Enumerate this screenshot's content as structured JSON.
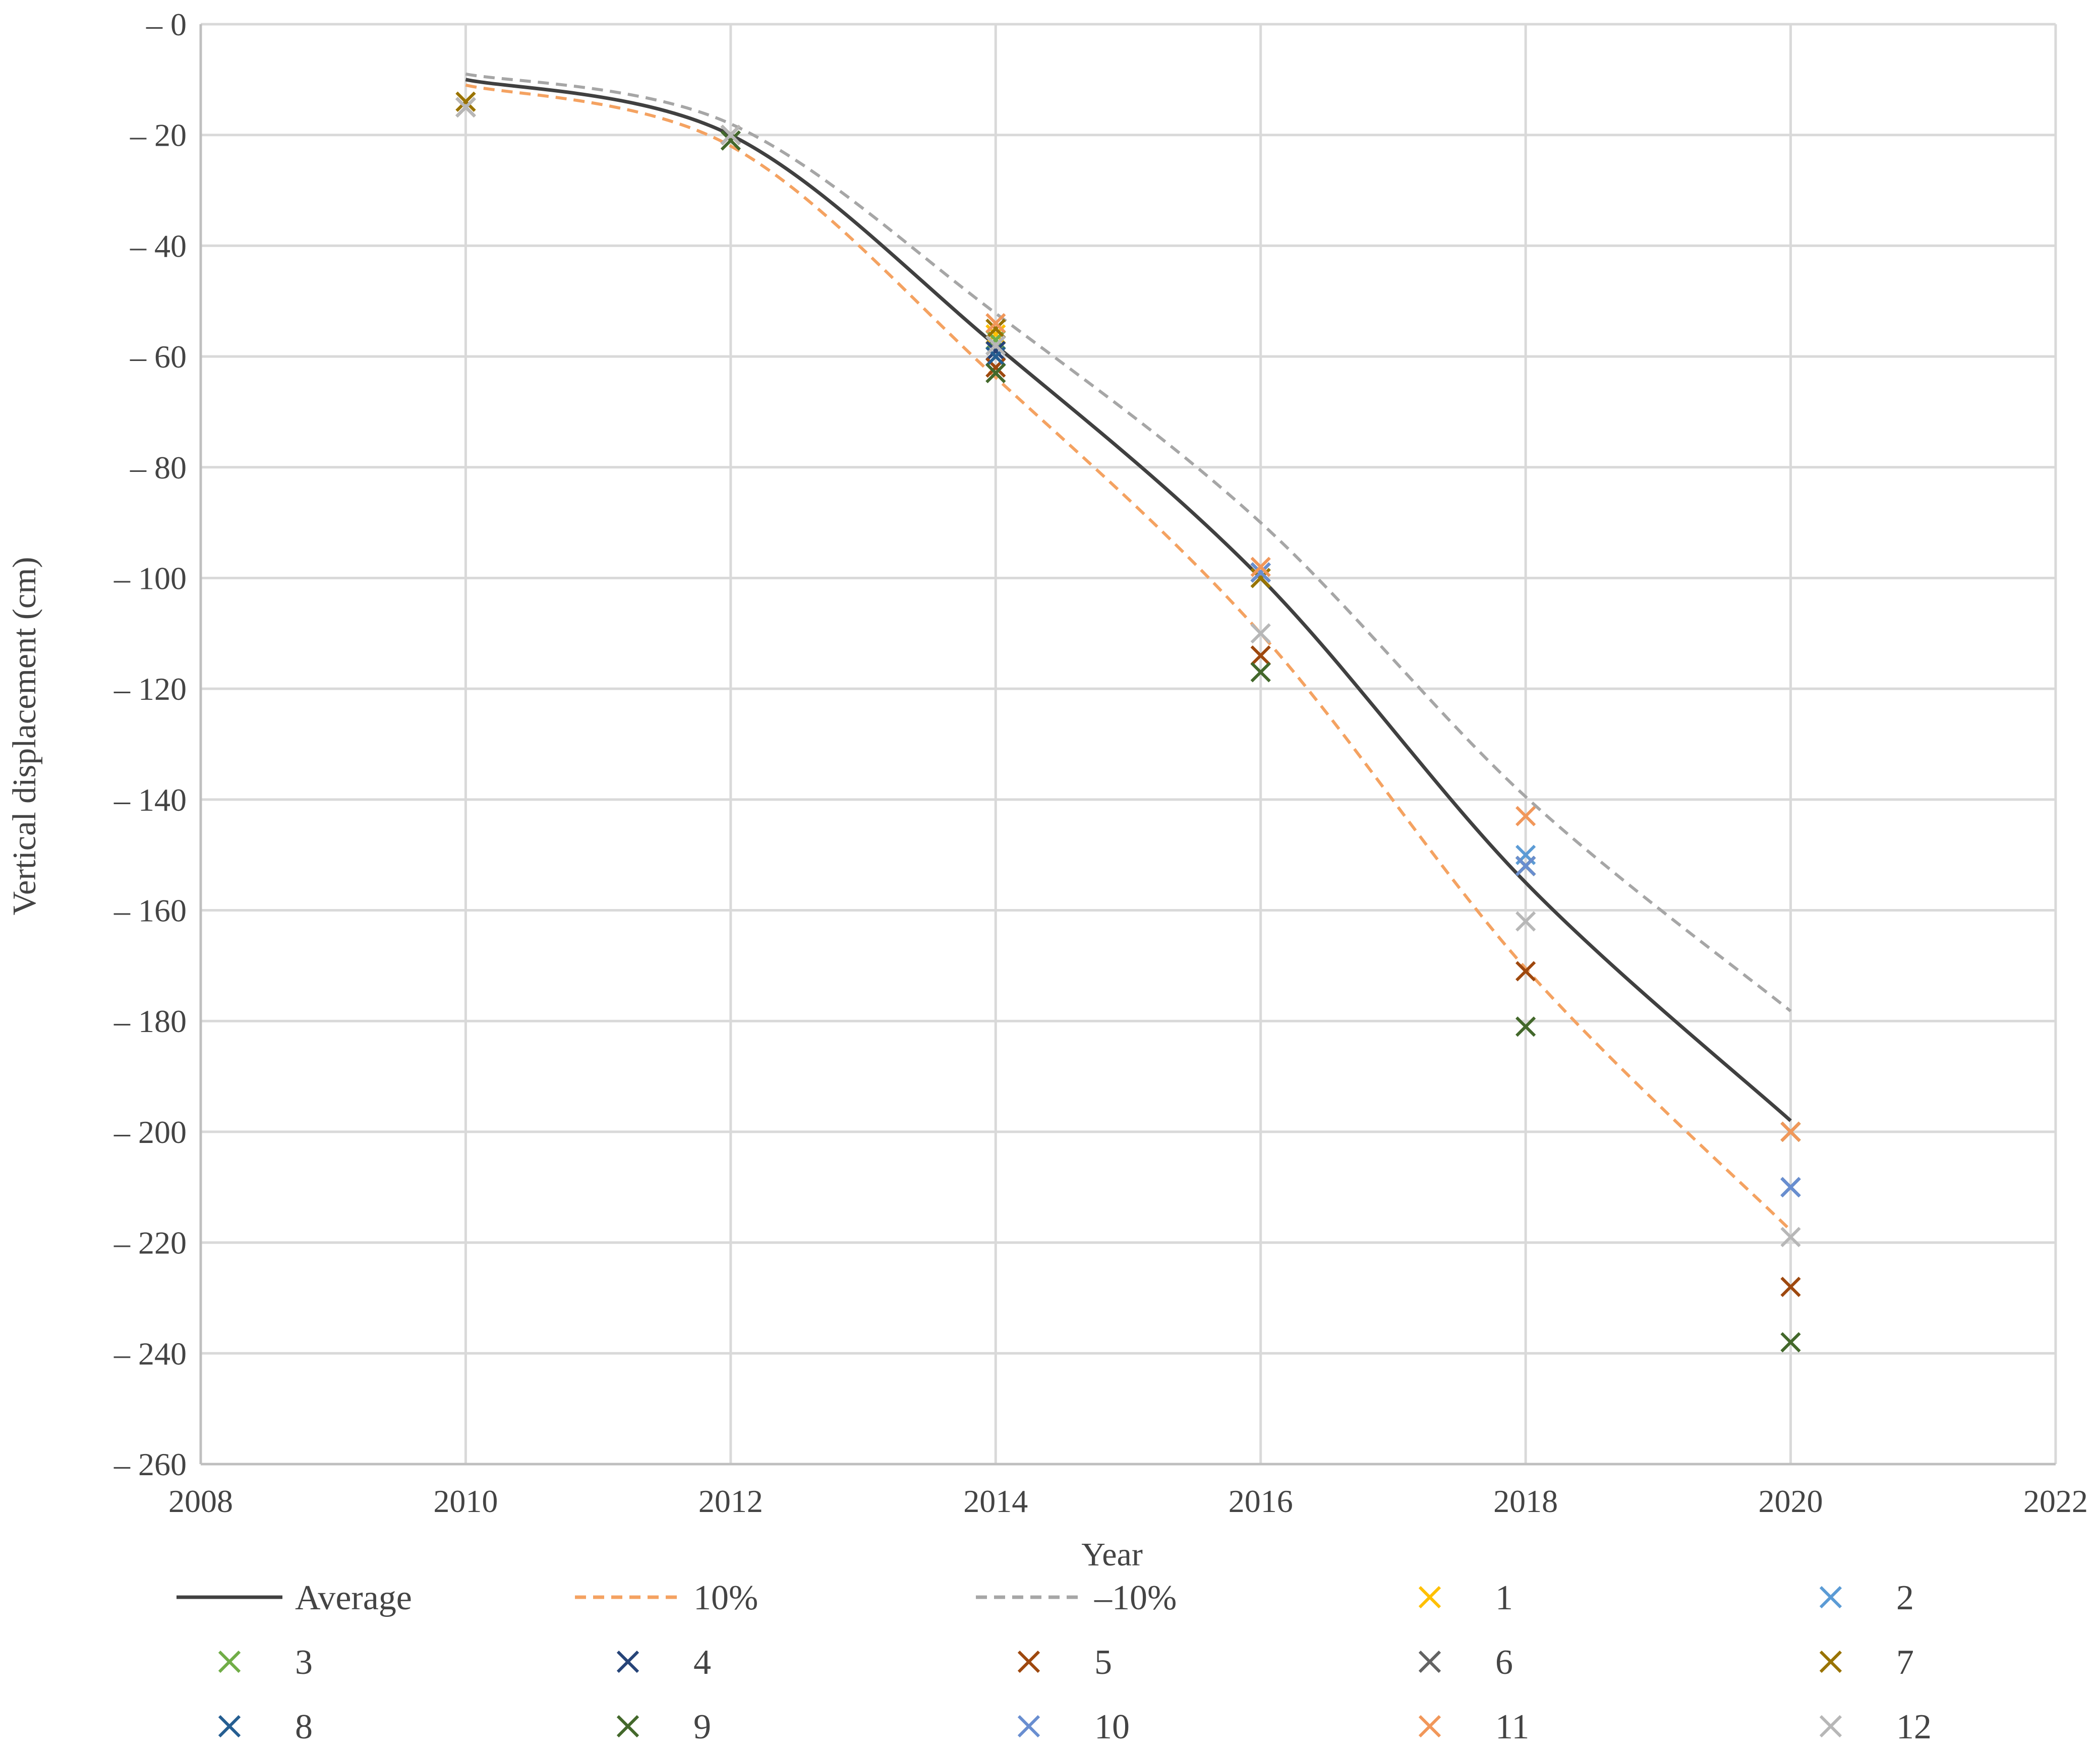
{
  "chart_data": {
    "type": "scatter",
    "xlabel": "Year",
    "ylabel": "Vertical displacement (cm)",
    "xlim": [
      2008,
      2022
    ],
    "ylim": [
      -260,
      0
    ],
    "x_ticks": [
      2008,
      2010,
      2012,
      2014,
      2016,
      2018,
      2020,
      2022
    ],
    "y_ticks": [
      0,
      -20,
      -40,
      -60,
      -80,
      -100,
      -120,
      -140,
      -160,
      -180,
      -200,
      -220,
      -240,
      -260
    ],
    "y_tick_labels": [
      "– 0",
      "– 20",
      "– 40",
      "– 60",
      "– 80",
      "– 100",
      "– 120",
      "– 140",
      "– 160",
      "– 180",
      "– 200",
      "– 220",
      "– 240",
      "– 260"
    ],
    "grid": true,
    "legend_position": "bottom",
    "lines": [
      {
        "name": "Average",
        "color": "#404040",
        "dash": "solid",
        "x": [
          2010,
          2012,
          2014,
          2016,
          2018,
          2020
        ],
        "y": [
          -10,
          -20,
          -58,
          -100,
          -155,
          -198
        ]
      },
      {
        "name": "10%",
        "color": "#F4A261",
        "dash": "dashed",
        "x": [
          2010,
          2012,
          2014,
          2016,
          2018,
          2020
        ],
        "y": [
          -11,
          -22,
          -63.8,
          -110,
          -170.5,
          -217.8
        ]
      },
      {
        "name": "–10%",
        "color": "#A6A6A6",
        "dash": "dashed",
        "x": [
          2010,
          2012,
          2014,
          2016,
          2018,
          2020
        ],
        "y": [
          -9,
          -18,
          -52.2,
          -90,
          -139.5,
          -178.2
        ]
      }
    ],
    "series": [
      {
        "name": "1",
        "color": "#FFC000",
        "x": [
          2010,
          2012,
          2014,
          2016,
          2018,
          2020
        ],
        "y": [
          -14,
          -20,
          -56,
          -99,
          -152,
          -200
        ]
      },
      {
        "name": "2",
        "color": "#5B9BD5",
        "x": [
          2010,
          2012,
          2014,
          2016,
          2018,
          2020
        ],
        "y": [
          -15,
          -20,
          -57,
          -99,
          -150,
          -210
        ]
      },
      {
        "name": "3",
        "color": "#70AD47",
        "x": [
          2010,
          2012,
          2014,
          2016,
          2018,
          2020
        ],
        "y": [
          -15,
          -20,
          -57,
          -100,
          -152,
          -200
        ]
      },
      {
        "name": "4",
        "color": "#264478",
        "x": [
          2010,
          2012,
          2014,
          2016,
          2018,
          2020
        ],
        "y": [
          -15,
          -20,
          -59,
          -99,
          -152,
          -210
        ]
      },
      {
        "name": "5",
        "color": "#9E480E",
        "x": [
          2010,
          2012,
          2014,
          2016,
          2018,
          2020
        ],
        "y": [
          -15,
          -20,
          -62,
          -114,
          -171,
          -228
        ]
      },
      {
        "name": "6",
        "color": "#636363",
        "x": [
          2010,
          2012,
          2014,
          2016,
          2018,
          2020
        ],
        "y": [
          -15,
          -20,
          -58,
          -99,
          -152,
          -200
        ]
      },
      {
        "name": "7",
        "color": "#997300",
        "x": [
          2010,
          2012,
          2014,
          2016,
          2018,
          2020
        ],
        "y": [
          -14,
          -20,
          -55,
          -100,
          -152,
          -200
        ]
      },
      {
        "name": "8",
        "color": "#255E91",
        "x": [
          2010,
          2012,
          2014,
          2016,
          2018,
          2020
        ],
        "y": [
          -15,
          -20,
          -60,
          -99,
          -152,
          -210
        ]
      },
      {
        "name": "9",
        "color": "#43682B",
        "x": [
          2010,
          2012,
          2014,
          2016,
          2018,
          2020
        ],
        "y": [
          -15,
          -21,
          -63,
          -117,
          -181,
          -238
        ]
      },
      {
        "name": "10",
        "color": "#698ED0",
        "x": [
          2010,
          2012,
          2014,
          2016,
          2018,
          2020
        ],
        "y": [
          -15,
          -20,
          -58,
          -99,
          -152,
          -210
        ]
      },
      {
        "name": "11",
        "color": "#F1975A",
        "x": [
          2010,
          2012,
          2014,
          2016,
          2018,
          2020
        ],
        "y": [
          -15,
          -20,
          -54,
          -98,
          -143,
          -200
        ]
      },
      {
        "name": "12",
        "color": "#B7B7B7",
        "x": [
          2010,
          2012,
          2014,
          2016,
          2018,
          2020
        ],
        "y": [
          -15,
          -20,
          -58,
          -110,
          -162,
          -219
        ]
      }
    ]
  }
}
